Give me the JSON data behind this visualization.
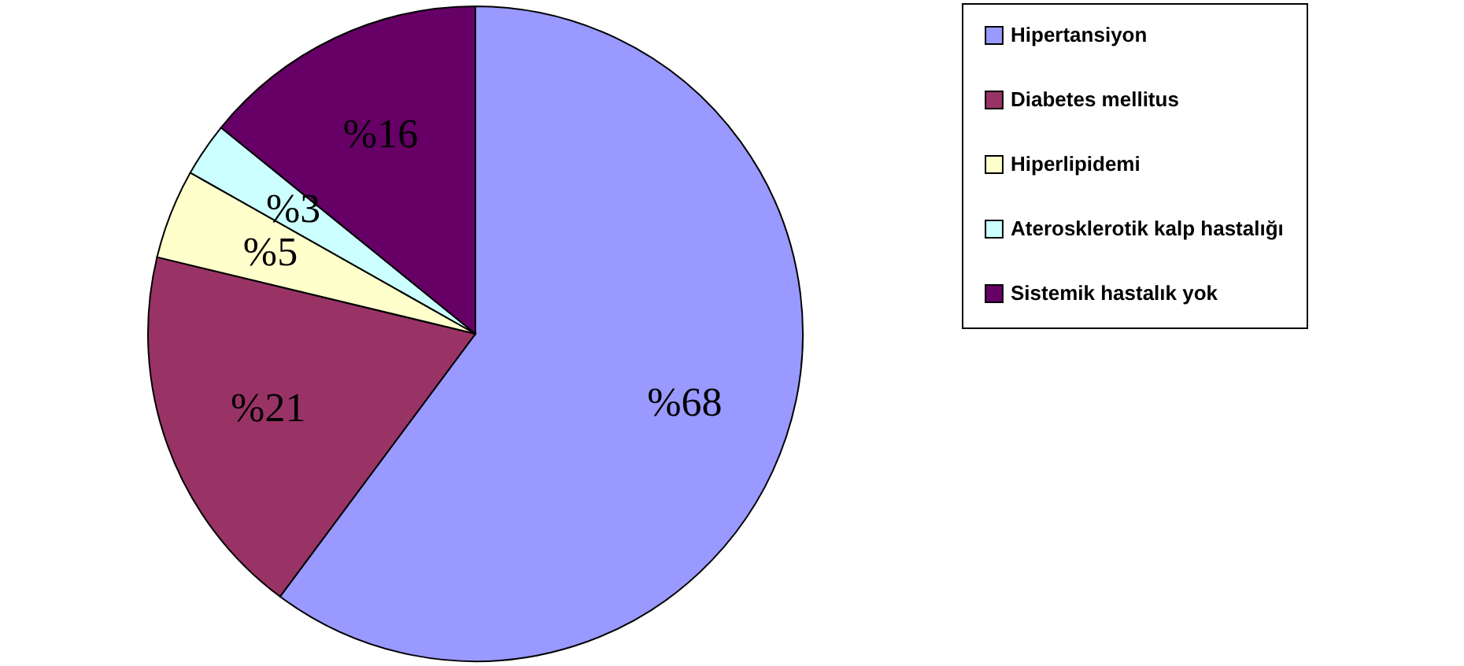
{
  "chart_data": {
    "type": "pie",
    "categories": [
      "Hipertansiyon",
      "Diabetes mellitus",
      "Hiperlipidemi",
      "Aterosklerotik kalp hastalığı",
      "Sistemik hastalık yok"
    ],
    "values": [
      68,
      21,
      5,
      3,
      16
    ],
    "colors": [
      "#9999ff",
      "#993366",
      "#ffffcc",
      "#ccffff",
      "#660066"
    ],
    "value_labels": [
      "%68",
      "%21",
      "%5",
      "%3",
      "%16"
    ],
    "legend": "right"
  }
}
